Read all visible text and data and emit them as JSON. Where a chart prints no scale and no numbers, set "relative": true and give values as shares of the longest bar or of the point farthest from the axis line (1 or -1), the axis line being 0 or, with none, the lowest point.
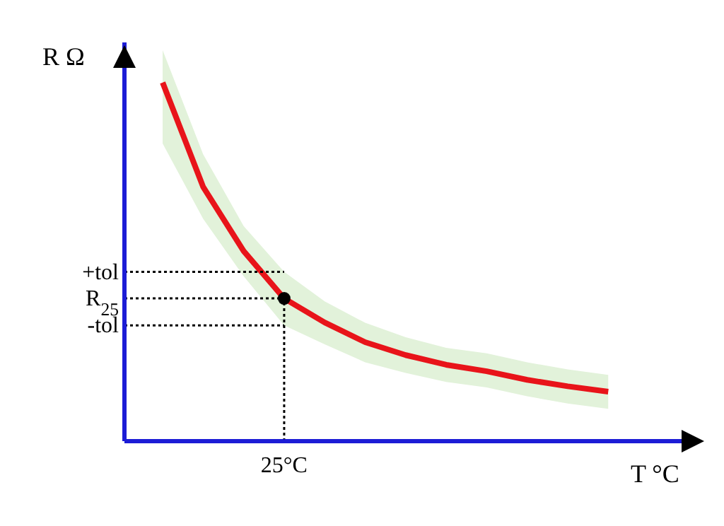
{
  "chart_data": {
    "type": "line",
    "relative": true,
    "xlabel": "T °C",
    "ylabel": "R Ω",
    "categories": [
      null,
      null,
      null,
      null,
      null,
      null,
      null,
      null,
      null,
      null,
      null,
      null
    ],
    "series": [
      {
        "color": "#e8141a",
        "values": [
          1.0,
          0.709,
          0.53,
          0.398,
          0.331,
          0.276,
          0.24,
          0.213,
          0.195,
          0.171,
          0.153,
          0.138
        ],
        "lower": [
          0.83,
          0.62,
          0.46,
          0.323,
          0.27,
          0.22,
          0.19,
          0.165,
          0.15,
          0.125,
          0.105,
          0.09
        ],
        "upper": [
          1.09,
          0.8,
          0.6,
          0.472,
          0.39,
          0.33,
          0.29,
          0.26,
          0.245,
          0.22,
          0.2,
          0.185
        ]
      }
    ],
    "marker": "none",
    "ref_lines": [
      {
        "axis": "y",
        "value": 0.472,
        "label": "+tol",
        "line_style": "dotted",
        "color": "#000000"
      },
      {
        "axis": "y",
        "value": 0.398,
        "label": "R$_{25}$",
        "line_style": "dotted",
        "color": "#000000"
      },
      {
        "axis": "y",
        "value": 0.323,
        "label": "-tol",
        "line_style": "dotted",
        "color": "#000000"
      },
      {
        "axis": "x",
        "label": "25°C",
        "line_style": "dotted",
        "color": "#000000"
      }
    ]
  }
}
